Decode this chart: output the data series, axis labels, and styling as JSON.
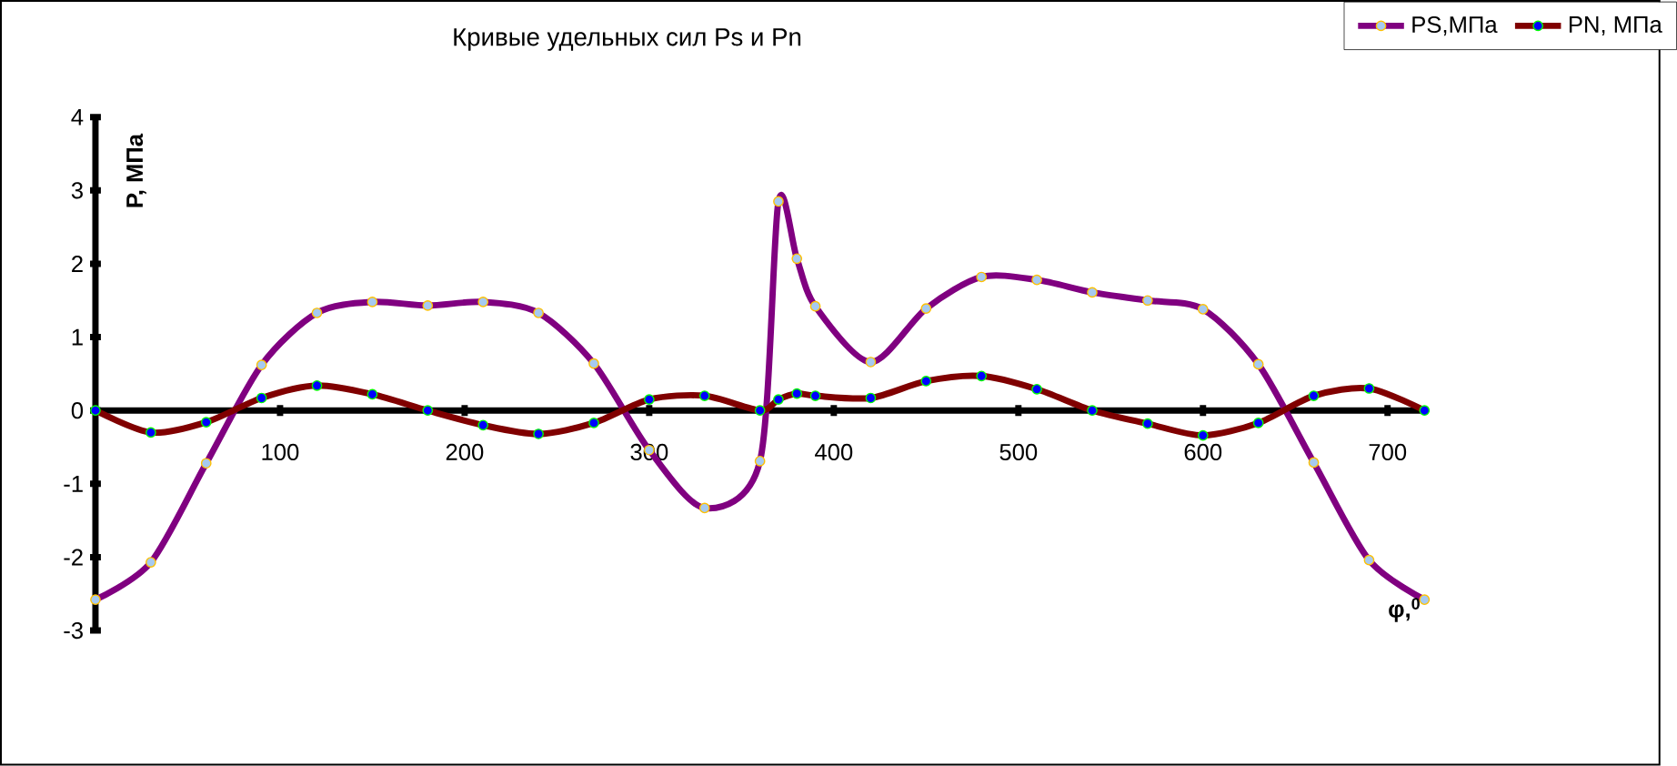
{
  "chart_data": {
    "type": "line",
    "title": "Кривые удельных сил Ps и Pn",
    "xlabel": "φ,$^{0}$",
    "ylabel": "P, МПа",
    "xlim": [
      0,
      720
    ],
    "ylim": [
      -3,
      4
    ],
    "xticks": [
      100,
      200,
      300,
      400,
      500,
      600,
      700
    ],
    "yticks": [
      -3,
      -2,
      -1,
      0,
      1,
      2,
      3,
      4
    ],
    "x": [
      0,
      30,
      60,
      90,
      120,
      150,
      180,
      210,
      240,
      270,
      300,
      330,
      360,
      370,
      380,
      390,
      420,
      450,
      480,
      510,
      540,
      570,
      600,
      630,
      660,
      690,
      720
    ],
    "marker": "circle",
    "line_style": "solid",
    "legend": "top right",
    "grid": false,
    "series": [
      {
        "name": "PS,МПа",
        "color": "#800080",
        "values": [
          -2.58,
          -2.07,
          -0.72,
          0.62,
          1.33,
          1.48,
          1.43,
          1.48,
          1.33,
          0.64,
          -0.54,
          -1.33,
          -0.69,
          2.85,
          2.07,
          1.42,
          0.66,
          1.39,
          1.82,
          1.78,
          1.61,
          1.5,
          1.38,
          0.63,
          -0.71,
          -2.04,
          -2.58
        ]
      },
      {
        "name": "PN, МПа",
        "color": "#800000",
        "values": [
          0,
          -0.3,
          -0.16,
          0.17,
          0.34,
          0.22,
          0,
          -0.2,
          -0.32,
          -0.17,
          0.15,
          0.2,
          0,
          0.15,
          0.23,
          0.2,
          0.17,
          0.4,
          0.47,
          0.29,
          0,
          -0.18,
          -0.34,
          -0.17,
          0.2,
          0.3,
          0
        ]
      }
    ]
  }
}
